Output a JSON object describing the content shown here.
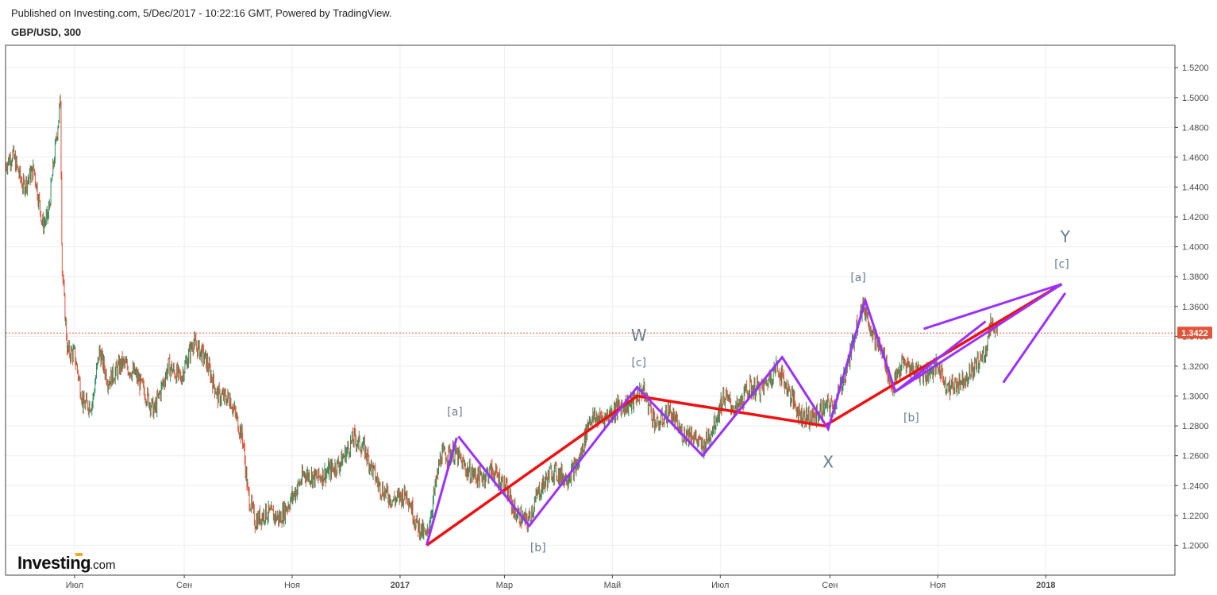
{
  "header": {
    "published": "Published on Investing.com, 5/Dec/2017 - 10:22:16 GMT, Powered by TradingView.",
    "symbol": "GBP/USD, 300"
  },
  "logo": {
    "main": "Investing",
    "suffix": ".com"
  },
  "colors": {
    "up_candle": "#2e8b57",
    "down_candle": "#e0553a",
    "trend_red": "#ee1111",
    "wave_purple": "#9b30ff",
    "price_tag": "#e0553a",
    "grid": "#eeeeee",
    "axis": "#444444",
    "label": "#6a7d8c"
  },
  "chart_data": {
    "type": "candlestick",
    "symbol": "GBP/USD",
    "timeframe": "300",
    "ylim": [
      1.18,
      1.535
    ],
    "xlim": [
      "2016-05-23",
      "2018-03-15"
    ],
    "y_ticks": [
      "1.2000",
      "1.2200",
      "1.2400",
      "1.2600",
      "1.2800",
      "1.3000",
      "1.3200",
      "1.3400",
      "1.3600",
      "1.3800",
      "1.4000",
      "1.4200",
      "1.4400",
      "1.4600",
      "1.4800",
      "1.5000",
      "1.5200"
    ],
    "x_ticks": [
      {
        "label": "Июл",
        "date": "2016-07-01",
        "bold": false
      },
      {
        "label": "Сен",
        "date": "2016-09-01",
        "bold": false
      },
      {
        "label": "Ноя",
        "date": "2016-11-01",
        "bold": false
      },
      {
        "label": "2017",
        "date": "2017-01-01",
        "bold": true
      },
      {
        "label": "Мар",
        "date": "2017-03-01",
        "bold": false
      },
      {
        "label": "Май",
        "date": "2017-05-01",
        "bold": false
      },
      {
        "label": "Июл",
        "date": "2017-07-01",
        "bold": false
      },
      {
        "label": "Сен",
        "date": "2017-09-01",
        "bold": false
      },
      {
        "label": "Ноя",
        "date": "2017-11-01",
        "bold": false
      },
      {
        "label": "2018",
        "date": "2018-01-01",
        "bold": true
      }
    ],
    "current_price": 1.3422,
    "current_price_label": "1.3422",
    "price_path": [
      [
        "2016-05-23",
        1.455
      ],
      [
        "2016-05-27",
        1.462
      ],
      [
        "2016-06-02",
        1.44
      ],
      [
        "2016-06-08",
        1.452
      ],
      [
        "2016-06-13",
        1.415
      ],
      [
        "2016-06-16",
        1.42
      ],
      [
        "2016-06-20",
        1.465
      ],
      [
        "2016-06-23",
        1.498
      ],
      [
        "2016-06-24",
        1.385
      ],
      [
        "2016-06-27",
        1.33
      ],
      [
        "2016-07-01",
        1.328
      ],
      [
        "2016-07-06",
        1.294
      ],
      [
        "2016-07-11",
        1.295
      ],
      [
        "2016-07-15",
        1.33
      ],
      [
        "2016-07-20",
        1.31
      ],
      [
        "2016-07-28",
        1.322
      ],
      [
        "2016-08-04",
        1.315
      ],
      [
        "2016-08-10",
        1.302
      ],
      [
        "2016-08-15",
        1.29
      ],
      [
        "2016-08-23",
        1.32
      ],
      [
        "2016-08-30",
        1.312
      ],
      [
        "2016-09-06",
        1.336
      ],
      [
        "2016-09-13",
        1.325
      ],
      [
        "2016-09-20",
        1.3
      ],
      [
        "2016-09-27",
        1.298
      ],
      [
        "2016-10-04",
        1.272
      ],
      [
        "2016-10-07",
        1.235
      ],
      [
        "2016-10-11",
        1.216
      ],
      [
        "2016-10-17",
        1.222
      ],
      [
        "2016-10-25",
        1.218
      ],
      [
        "2016-11-01",
        1.232
      ],
      [
        "2016-11-08",
        1.248
      ],
      [
        "2016-11-15",
        1.245
      ],
      [
        "2016-11-22",
        1.25
      ],
      [
        "2016-11-28",
        1.255
      ],
      [
        "2016-12-06",
        1.272
      ],
      [
        "2016-12-12",
        1.264
      ],
      [
        "2016-12-20",
        1.24
      ],
      [
        "2016-12-28",
        1.23
      ],
      [
        "2017-01-05",
        1.235
      ],
      [
        "2017-01-10",
        1.215
      ],
      [
        "2017-01-16",
        1.205
      ],
      [
        "2017-01-24",
        1.26
      ],
      [
        "2017-02-01",
        1.262
      ],
      [
        "2017-02-08",
        1.25
      ],
      [
        "2017-02-15",
        1.245
      ],
      [
        "2017-02-22",
        1.25
      ],
      [
        "2017-03-01",
        1.24
      ],
      [
        "2017-03-07",
        1.222
      ],
      [
        "2017-03-14",
        1.215
      ],
      [
        "2017-03-20",
        1.235
      ],
      [
        "2017-03-28",
        1.25
      ],
      [
        "2017-04-05",
        1.245
      ],
      [
        "2017-04-12",
        1.255
      ],
      [
        "2017-04-18",
        1.285
      ],
      [
        "2017-04-26",
        1.285
      ],
      [
        "2017-05-05",
        1.293
      ],
      [
        "2017-05-12",
        1.295
      ],
      [
        "2017-05-18",
        1.305
      ],
      [
        "2017-05-26",
        1.28
      ],
      [
        "2017-06-02",
        1.29
      ],
      [
        "2017-06-09",
        1.275
      ],
      [
        "2017-06-15",
        1.275
      ],
      [
        "2017-06-21",
        1.265
      ],
      [
        "2017-06-27",
        1.28
      ],
      [
        "2017-07-03",
        1.3
      ],
      [
        "2017-07-10",
        1.29
      ],
      [
        "2017-07-17",
        1.305
      ],
      [
        "2017-07-25",
        1.305
      ],
      [
        "2017-08-02",
        1.32
      ],
      [
        "2017-08-08",
        1.305
      ],
      [
        "2017-08-15",
        1.288
      ],
      [
        "2017-08-22",
        1.285
      ],
      [
        "2017-08-29",
        1.292
      ],
      [
        "2017-09-04",
        1.295
      ],
      [
        "2017-09-12",
        1.325
      ],
      [
        "2017-09-18",
        1.358
      ],
      [
        "2017-09-21",
        1.358
      ],
      [
        "2017-09-26",
        1.34
      ],
      [
        "2017-10-02",
        1.325
      ],
      [
        "2017-10-06",
        1.305
      ],
      [
        "2017-10-12",
        1.322
      ],
      [
        "2017-10-18",
        1.318
      ],
      [
        "2017-10-25",
        1.315
      ],
      [
        "2017-11-01",
        1.32
      ],
      [
        "2017-11-07",
        1.305
      ],
      [
        "2017-11-14",
        1.31
      ],
      [
        "2017-11-21",
        1.318
      ],
      [
        "2017-11-28",
        1.33
      ],
      [
        "2017-12-01",
        1.35
      ],
      [
        "2017-12-05",
        1.3422
      ]
    ],
    "trend_lines": [
      {
        "name": "red-trend",
        "color": "red",
        "points": [
          [
            "2017-01-16",
            1.2
          ],
          [
            "2017-05-15",
            1.3
          ],
          [
            "2017-08-29",
            1.28
          ],
          [
            "2018-01-10",
            1.375
          ]
        ]
      }
    ],
    "wave_lines": [
      {
        "name": "wave-w",
        "color": "purple",
        "points": [
          [
            "2017-01-16",
            1.2
          ],
          [
            "2017-02-02",
            1.272
          ],
          [
            "2017-02-02",
            1.272
          ]
        ]
      },
      {
        "name": "wave-w-b",
        "color": "purple",
        "points": [
          [
            "2017-02-03",
            1.273
          ],
          [
            "2017-03-15",
            1.213
          ],
          [
            "2017-05-15",
            1.306
          ],
          [
            "2017-06-21",
            1.26
          ],
          [
            "2017-08-05",
            1.326
          ],
          [
            "2017-08-31",
            1.278
          ],
          [
            "2017-09-21",
            1.364
          ],
          [
            "2017-10-08",
            1.303
          ],
          [
            "2017-11-28",
            1.35
          ]
        ]
      },
      {
        "name": "wave-upper-channel",
        "color": "purple",
        "points": [
          [
            "2017-10-24",
            1.345
          ],
          [
            "2018-01-10",
            1.375
          ]
        ]
      },
      {
        "name": "wave-lower-channel",
        "color": "purple",
        "points": [
          [
            "2017-10-08",
            1.303
          ],
          [
            "2018-01-10",
            1.375
          ]
        ]
      },
      {
        "name": "wave-projection",
        "color": "purple",
        "points": [
          [
            "2017-12-08",
            1.309
          ],
          [
            "2018-01-12",
            1.369
          ]
        ]
      }
    ],
    "annotations": [
      {
        "text": "[a]",
        "date": "2017-02-01",
        "y": 1.287,
        "size": "small"
      },
      {
        "text": "[b]",
        "date": "2017-03-20",
        "y": 1.196,
        "size": "small"
      },
      {
        "text": "W",
        "date": "2017-05-16",
        "y": 1.337,
        "size": "big"
      },
      {
        "text": "[c]",
        "date": "2017-05-16",
        "y": 1.32,
        "size": "small"
      },
      {
        "text": "X",
        "date": "2017-08-31",
        "y": 1.252,
        "size": "big"
      },
      {
        "text": "[a]",
        "date": "2017-09-17",
        "y": 1.377,
        "size": "small"
      },
      {
        "text": "[b]",
        "date": "2017-10-17",
        "y": 1.283,
        "size": "small"
      },
      {
        "text": "Y",
        "date": "2018-01-12",
        "y": 1.403,
        "size": "big"
      },
      {
        "text": "[c]",
        "date": "2018-01-10",
        "y": 1.386,
        "size": "small"
      }
    ]
  }
}
